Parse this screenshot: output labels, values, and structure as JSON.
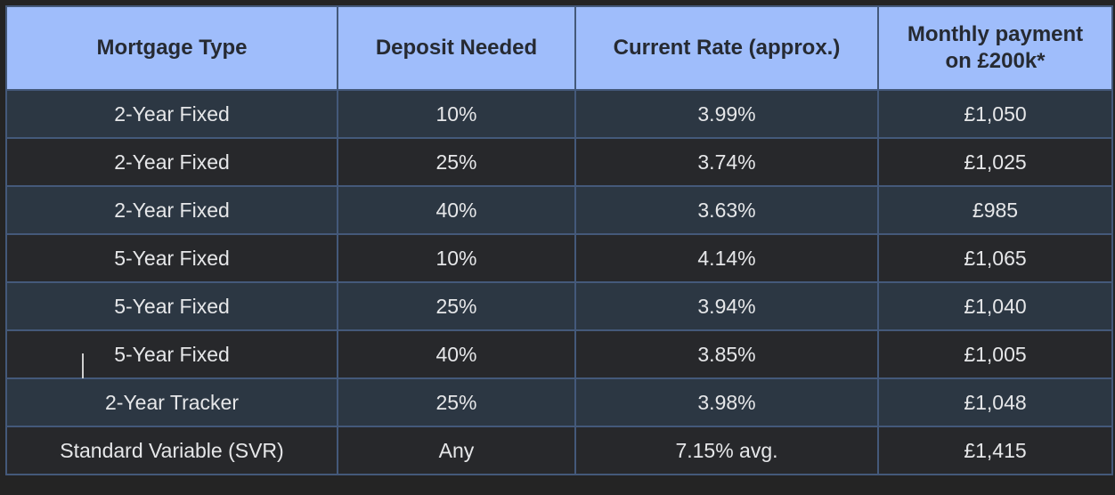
{
  "table": {
    "headers": [
      "Mortgage Type",
      "Deposit Needed",
      "Current Rate (approx.)",
      "Monthly payment on £200k*"
    ],
    "rows": [
      {
        "cells": [
          "2-Year Fixed",
          "10%",
          "3.99%",
          "£1,050"
        ]
      },
      {
        "cells": [
          "2-Year Fixed",
          "25%",
          "3.74%",
          "£1,025"
        ]
      },
      {
        "cells": [
          "2-Year Fixed",
          "40%",
          "3.63%",
          "£985"
        ]
      },
      {
        "cells": [
          "5-Year Fixed",
          "10%",
          "4.14%",
          "£1,065"
        ]
      },
      {
        "cells": [
          "5-Year Fixed",
          "25%",
          "3.94%",
          "£1,040"
        ]
      },
      {
        "cells": [
          "5-Year Fixed",
          "40%",
          "3.85%",
          "£1,005"
        ]
      },
      {
        "cells": [
          "2-Year Tracker",
          "25%",
          "3.98%",
          "£1,048"
        ]
      },
      {
        "cells": [
          "Standard Variable (SVR)",
          "Any",
          "7.15% avg.",
          "£1,415"
        ]
      }
    ],
    "caret": {
      "visible_in_row": 6,
      "before_text": "5-Year Fixed"
    },
    "colors": {
      "frame_bg": "#242424",
      "header_bg": "#9fbdfb",
      "header_text": "#262a32",
      "row_odd_bg": "#2c3743",
      "row_even_bg": "#27282b",
      "cell_text": "#e6e7e9",
      "border": "#44597a",
      "caret": "#d0d0d0"
    }
  },
  "chart_data": {
    "type": "table",
    "columns": [
      "Mortgage Type",
      "Deposit Needed",
      "Current Rate (approx.)",
      "Monthly payment on £200k*"
    ],
    "rows": [
      [
        "2-Year Fixed",
        "10%",
        "3.99%",
        "£1,050"
      ],
      [
        "2-Year Fixed",
        "25%",
        "3.74%",
        "£1,025"
      ],
      [
        "2-Year Fixed",
        "40%",
        "3.63%",
        "£985"
      ],
      [
        "5-Year Fixed",
        "10%",
        "4.14%",
        "£1,065"
      ],
      [
        "5-Year Fixed",
        "25%",
        "3.94%",
        "£1,040"
      ],
      [
        "5-Year Fixed",
        "40%",
        "3.85%",
        "£1,005"
      ],
      [
        "2-Year Tracker",
        "25%",
        "3.98%",
        "£1,048"
      ],
      [
        "Standard Variable (SVR)",
        "Any",
        "7.15% avg.",
        "£1,415"
      ]
    ]
  }
}
